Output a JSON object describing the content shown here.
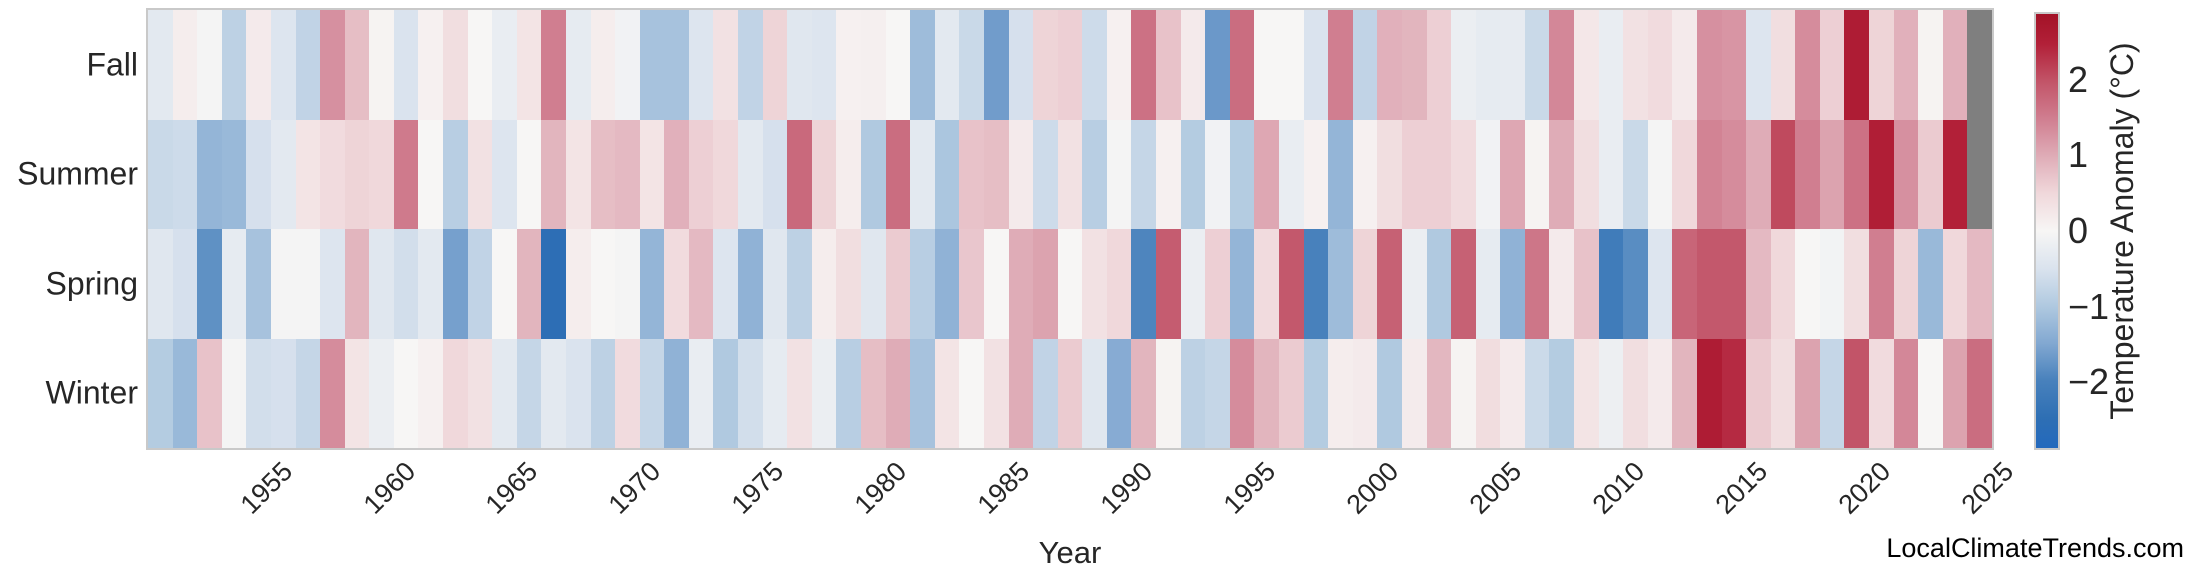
{
  "page": {
    "watermark": "LocalClimateTrends.com"
  },
  "chart_data": {
    "type": "heatmap",
    "title": "",
    "xlabel": "Year",
    "ylabel": "",
    "rows": [
      "Fall",
      "Summer",
      "Spring",
      "Winter"
    ],
    "year_start": 1951,
    "year_end": 2025,
    "xticks": [
      1955,
      1960,
      1965,
      1970,
      1975,
      1980,
      1985,
      1990,
      1995,
      2000,
      2005,
      2010,
      2015,
      2020,
      2025
    ],
    "legend_position": "right",
    "grid": false,
    "missing_color": "#7f7f7f",
    "text_color": "#262626",
    "frame_color": "#c9c9c9",
    "colorbar": {
      "label": "Temperature Anomaly (°C)",
      "ticks": [
        2,
        1,
        0,
        -1,
        -2
      ],
      "vmin": -2.9,
      "vmax": 2.9
    },
    "colormap_stops": [
      [
        -2.9,
        "#2369bd"
      ],
      [
        -2.5,
        "#2e6fb4"
      ],
      [
        -2.0,
        "#4881bc"
      ],
      [
        -1.5,
        "#82a8d1"
      ],
      [
        -1.0,
        "#b0c9e0"
      ],
      [
        -0.5,
        "#dae3ee"
      ],
      [
        0.0,
        "#f7f6f5"
      ],
      [
        0.5,
        "#f0d8db"
      ],
      [
        1.0,
        "#dfacb7"
      ],
      [
        1.5,
        "#d07e90"
      ],
      [
        2.0,
        "#c25468"
      ],
      [
        2.5,
        "#b22038"
      ],
      [
        2.9,
        "#a31227"
      ]
    ],
    "series": [
      {
        "name": "Fall",
        "values": [
          -0.35,
          0.15,
          -0.05,
          -0.85,
          0.2,
          -0.45,
          -0.8,
          1.3,
          0.8,
          0.05,
          -0.5,
          0.1,
          0.4,
          0,
          -0.25,
          0.3,
          1.5,
          -0.3,
          0.15,
          -0.1,
          -1.1,
          -1.1,
          -0.45,
          0.35,
          -0.8,
          0.55,
          -0.4,
          -0.45,
          0.1,
          0.12,
          0,
          -1.2,
          -0.35,
          -0.7,
          -1.65,
          -0.55,
          0.55,
          0.6,
          -0.65,
          0.1,
          1.65,
          0.75,
          0.2,
          -1.7,
          1.7,
          0,
          0,
          -0.5,
          1.5,
          -0.8,
          0.95,
          0.9,
          0.6,
          -0.2,
          -0.3,
          -0.28,
          -0.7,
          1.4,
          0.25,
          -0.25,
          0.35,
          0.45,
          0.2,
          1.3,
          1.25,
          -0.45,
          0.4,
          1.35,
          0.6,
          2.6,
          0.55,
          0.95,
          0.05,
          0.95,
          null
        ]
      },
      {
        "name": "Summer",
        "values": [
          -0.7,
          -0.65,
          -1.3,
          -1.25,
          -0.55,
          -0.35,
          0.3,
          0.45,
          0.55,
          0.5,
          1.55,
          0,
          -0.9,
          0.35,
          -0.45,
          0,
          0.9,
          0.3,
          0.8,
          0.85,
          0.3,
          0.95,
          0.6,
          0.5,
          -0.35,
          -0.55,
          1.75,
          0.55,
          0.15,
          -1.0,
          1.7,
          -0.35,
          -1.05,
          0.75,
          0.8,
          0.2,
          -0.65,
          0.35,
          -0.9,
          -0.05,
          -0.75,
          0.1,
          -0.95,
          -0.1,
          -0.95,
          1.05,
          -0.25,
          0.1,
          -1.3,
          0.1,
          0.4,
          0.6,
          0.6,
          0.45,
          -0.1,
          1.05,
          0.05,
          1.0,
          0.4,
          -0.25,
          -0.7,
          -0.05,
          0.5,
          1.45,
          1.35,
          1.0,
          2.1,
          1.5,
          1.1,
          1.65,
          2.55,
          1.3,
          0.65,
          2.5,
          null
        ]
      },
      {
        "name": "Spring",
        "values": [
          -0.4,
          -0.55,
          -1.8,
          -0.3,
          -1.1,
          -0.05,
          -0.05,
          -0.45,
          0.9,
          -0.4,
          -0.6,
          -0.35,
          -1.6,
          -0.8,
          0,
          0.9,
          -2.55,
          0.15,
          0,
          -0.05,
          -1.3,
          0.45,
          0.85,
          -0.45,
          -1.35,
          -0.4,
          -0.85,
          0.15,
          0.4,
          -0.4,
          0.65,
          -0.9,
          -1.35,
          0.7,
          0,
          1.0,
          1.1,
          0,
          0.35,
          0.5,
          -1.95,
          1.9,
          -0.2,
          0.6,
          -1.3,
          0.45,
          1.95,
          -2.0,
          -1.2,
          0.55,
          1.85,
          -0.2,
          -1.0,
          1.85,
          -0.3,
          -1.35,
          1.6,
          0.2,
          0.75,
          -2.15,
          -1.85,
          -0.45,
          1.8,
          1.95,
          1.95,
          0.85,
          0.5,
          0,
          -0.08,
          0.4,
          1.5,
          0.55,
          -1.25,
          0.5,
          0.85
        ]
      },
      {
        "name": "Winter",
        "values": [
          -0.95,
          -1.25,
          0.75,
          -0.05,
          -0.6,
          -0.55,
          -0.75,
          1.35,
          0.3,
          -0.2,
          0,
          0.1,
          0.5,
          0.35,
          -0.35,
          -0.75,
          -0.35,
          -0.5,
          -0.85,
          0.45,
          -0.75,
          -1.35,
          -0.25,
          -1.0,
          -0.6,
          -0.3,
          0.35,
          -0.2,
          -0.9,
          0.8,
          1.0,
          -1.1,
          0.3,
          0,
          0.35,
          1.0,
          -0.8,
          0.65,
          -0.4,
          -1.45,
          0.9,
          0.05,
          -0.85,
          -0.75,
          1.35,
          0.9,
          0.65,
          -0.95,
          0.15,
          0.2,
          -1.0,
          0.18,
          0.88,
          0.05,
          0.42,
          0.2,
          -0.68,
          -0.95,
          0.3,
          -0.18,
          0.4,
          0.2,
          0.9,
          2.6,
          2.4,
          0.65,
          0.4,
          1.1,
          -0.75,
          2.0,
          0.45,
          1.4,
          0,
          1.1,
          1.7
        ]
      }
    ]
  }
}
